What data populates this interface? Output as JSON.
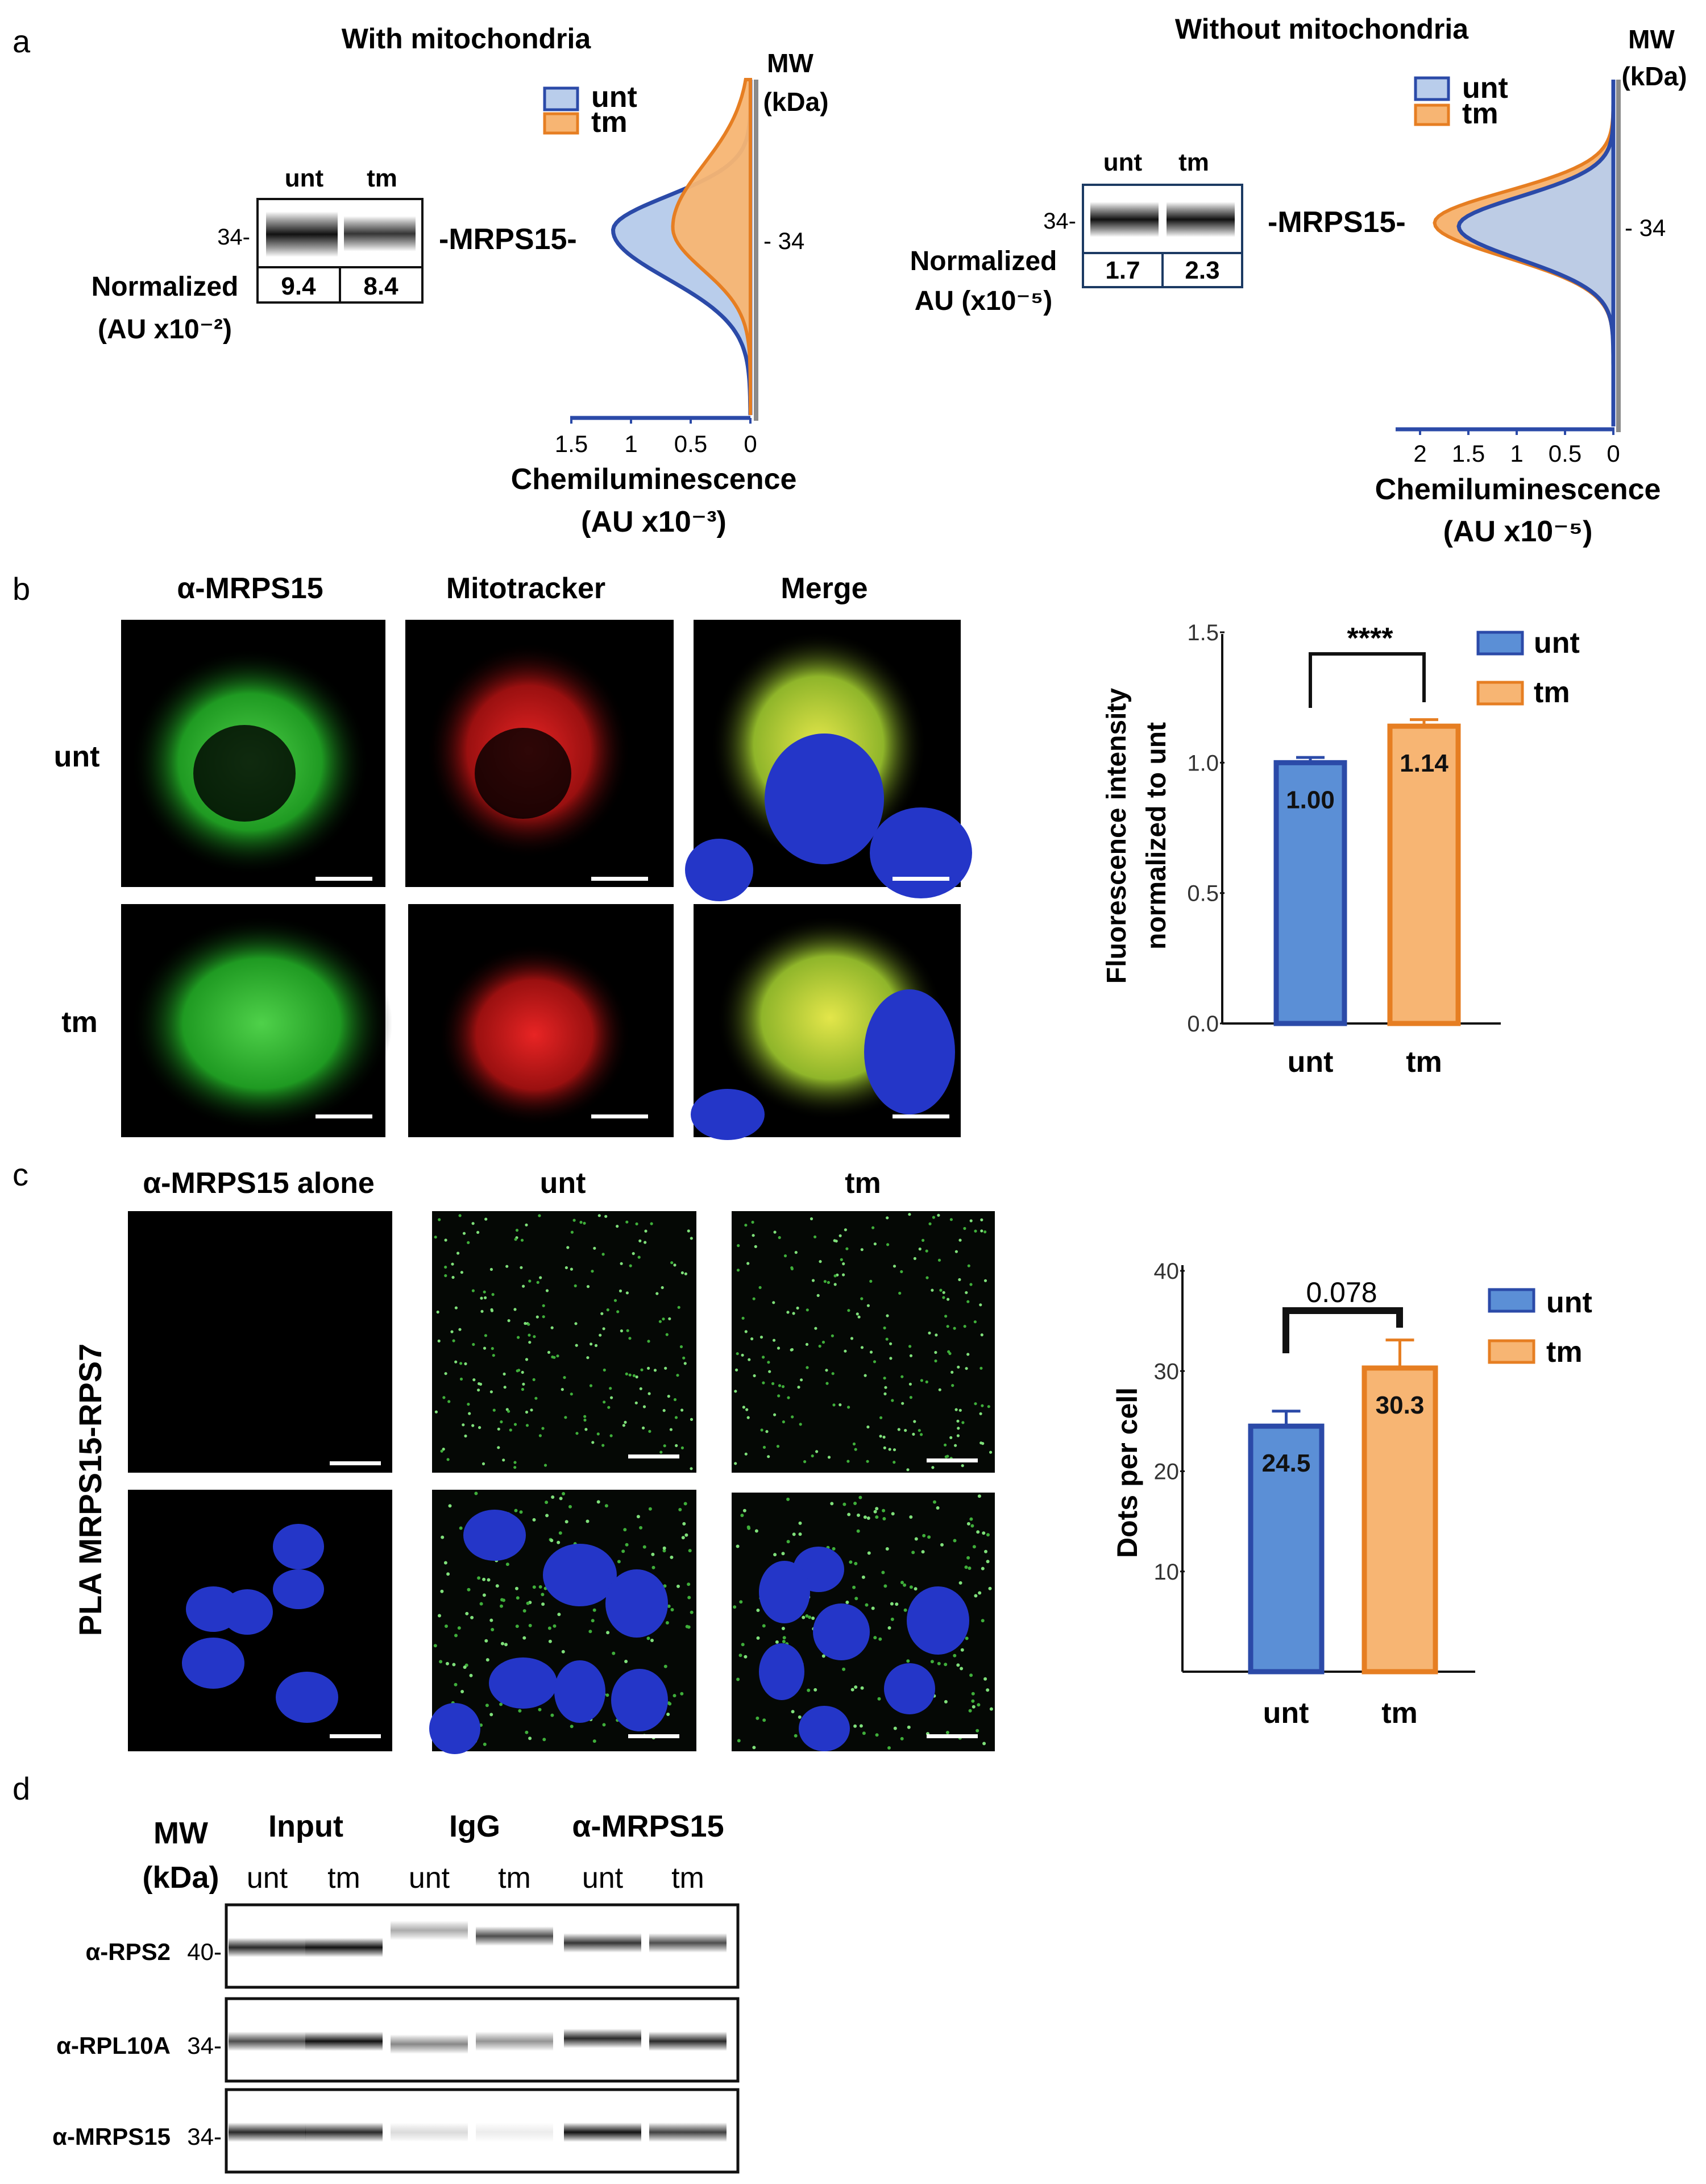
{
  "figure": {
    "panel_labels": [
      "a",
      "b",
      "c",
      "d"
    ],
    "colors": {
      "unt": "#5b8fd6",
      "unt_edge": "#2b4aa8",
      "unt_fill_light": "#b9cdeb",
      "tm": "#f7b573",
      "tm_edge": "#e67e22",
      "black": "#111111"
    }
  },
  "panel_a": {
    "left": {
      "title": "With mitochondria",
      "mw_label_1": "MW",
      "mw_label_2": "(kDa)",
      "legend": [
        "unt",
        "tm"
      ],
      "blot_cols": [
        "unt",
        "tm"
      ],
      "marker": "34-",
      "protein": "-MRPS15-",
      "norm_label_1": "Normalized",
      "norm_label_2": "(AU x10⁻²)",
      "values": [
        "9.4",
        "8.4"
      ],
      "mw_tick": "- 34",
      "xlabel_1": "Chemiluminescence",
      "xlabel_2": "(AU x10⁻³)",
      "chart_data": {
        "type": "area",
        "x_ticks": [
          "1.5",
          "1",
          "0.5",
          "0"
        ],
        "xlim": [
          1.5,
          0
        ],
        "series": [
          {
            "name": "unt",
            "peak": 1.15
          },
          {
            "name": "tm",
            "peak": 0.65
          }
        ]
      }
    },
    "right": {
      "title": "Without mitochondria",
      "mw_label_1": "MW",
      "mw_label_2": "(kDa)",
      "legend": [
        "unt",
        "tm"
      ],
      "blot_cols": [
        "unt",
        "tm"
      ],
      "marker": "34-",
      "protein": "-MRPS15-",
      "norm_label_1": "Normalized",
      "norm_label_2": "AU (x10⁻⁵)",
      "values": [
        "1.7",
        "2.3"
      ],
      "mw_tick": "- 34",
      "xlabel_1": "Chemiluminescence",
      "xlabel_2": "(AU x10⁻⁵)",
      "chart_data": {
        "type": "area",
        "x_ticks": [
          "2",
          "1.5",
          "1",
          "0.5",
          "0"
        ],
        "xlim": [
          2,
          0
        ],
        "series": [
          {
            "name": "unt",
            "peak": 1.6
          },
          {
            "name": "tm",
            "peak": 1.85
          }
        ]
      }
    }
  },
  "panel_b": {
    "col_titles": [
      "α-MRPS15",
      "Mitotracker",
      "Merge"
    ],
    "row_labels": [
      "unt",
      "tm"
    ],
    "chart_data": {
      "type": "bar",
      "categories": [
        "unt",
        "tm"
      ],
      "values": [
        1.0,
        1.14
      ],
      "errors": [
        0.02,
        0.025
      ],
      "value_labels": [
        "1.00",
        "1.14"
      ],
      "ylabel_1": "Fluorescence intensity",
      "ylabel_2": "normalized to unt",
      "y_ticks": [
        "0.0",
        "0.5",
        "1.0",
        "1.5"
      ],
      "ylim": [
        0,
        1.5
      ],
      "significance": "****",
      "legend": [
        "unt",
        "tm"
      ]
    }
  },
  "panel_c": {
    "col_titles": [
      "α-MRPS15 alone",
      "unt",
      "tm"
    ],
    "side_label": "PLA MRPS15-RPS7",
    "chart_data": {
      "type": "bar",
      "categories": [
        "unt",
        "tm"
      ],
      "values": [
        24.5,
        30.3
      ],
      "errors": [
        1.5,
        2.8
      ],
      "value_labels": [
        "24.5",
        "30.3"
      ],
      "ylabel": "Dots per cell",
      "y_ticks": [
        "10",
        "20",
        "30",
        "40"
      ],
      "ylim": [
        0,
        40
      ],
      "significance": "0.078",
      "legend": [
        "unt",
        "tm"
      ]
    }
  },
  "panel_d": {
    "mw_label_1": "MW",
    "mw_label_2": "(kDa)",
    "groups": [
      "Input",
      "IgG",
      "α-MRPS15"
    ],
    "lanes": [
      "unt",
      "tm",
      "unt",
      "tm",
      "unt",
      "tm"
    ],
    "rows": [
      {
        "antibody": "α-RPS2",
        "marker": "40-"
      },
      {
        "antibody": "α-RPL10A",
        "marker": "34-"
      },
      {
        "antibody": "α-MRPS15",
        "marker": "34-"
      }
    ]
  }
}
